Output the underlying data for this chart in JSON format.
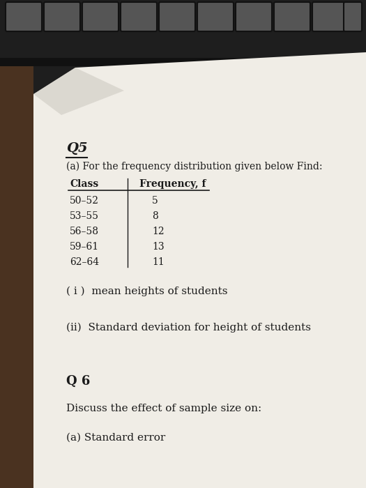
{
  "bg_keyboard": "#1e1e1e",
  "bg_wood": "#4a3220",
  "bg_paper": "#f0ede6",
  "bg_paper_shadow": "#d8d4cc",
  "key_color": "#555555",
  "key_border": "#111111",
  "text_color": "#1a1a1a",
  "q5_label": "Q5",
  "subtitle": "(a) For the frequency distribution given below Find:",
  "table_header_col1": "Class",
  "table_header_col2": "Frequency, f",
  "table_rows": [
    [
      "50–52",
      "5"
    ],
    [
      "53–55",
      "8"
    ],
    [
      "56–58",
      "12"
    ],
    [
      "59–61",
      "13"
    ],
    [
      "62–64",
      "11"
    ]
  ],
  "item_i": "( i )  mean heights of students",
  "item_ii": "(ii)  Standard deviation for height of students",
  "q6_label": "Q 6",
  "q6_text": "Discuss the effect of sample size on:",
  "q6_sub": "(a) Standard error",
  "figsize": [
    5.25,
    7.0
  ],
  "dpi": 100
}
